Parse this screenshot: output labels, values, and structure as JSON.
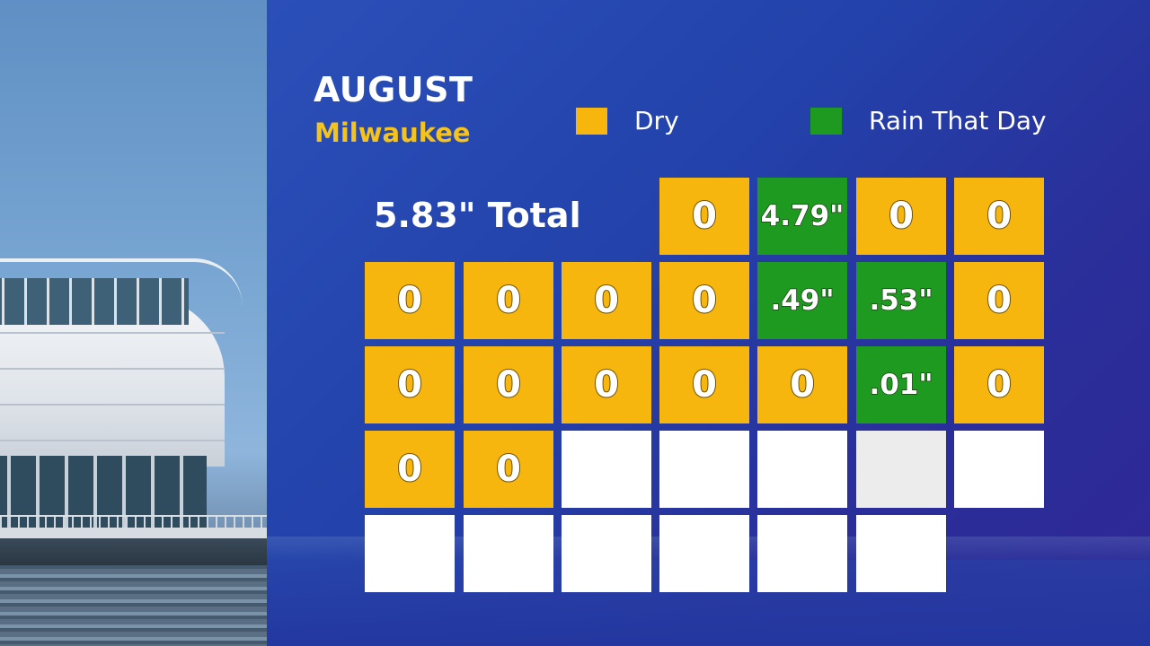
{
  "header": {
    "title": "AUGUST",
    "subtitle": "Milwaukee",
    "total": "5.83\" Total"
  },
  "legend": [
    {
      "label": "Dry",
      "color": "#f7b60d"
    },
    {
      "label": "Rain That Day",
      "color": "#1f9a20"
    }
  ],
  "colors": {
    "dry": "#f7b60d",
    "rain": "#1f9a20",
    "empty": "#ffffff",
    "background": "#2342ab"
  },
  "calendar": {
    "weeks": [
      [
        null,
        null,
        null,
        {
          "value": "0",
          "status": "dry"
        },
        {
          "value": "4.79\"",
          "status": "rain"
        },
        {
          "value": "0",
          "status": "dry"
        },
        {
          "value": "0",
          "status": "dry"
        }
      ],
      [
        {
          "value": "0",
          "status": "dry"
        },
        {
          "value": "0",
          "status": "dry"
        },
        {
          "value": "0",
          "status": "dry"
        },
        {
          "value": "0",
          "status": "dry"
        },
        {
          "value": ".49\"",
          "status": "rain"
        },
        {
          "value": ".53\"",
          "status": "rain"
        },
        {
          "value": "0",
          "status": "dry"
        }
      ],
      [
        {
          "value": "0",
          "status": "dry"
        },
        {
          "value": "0",
          "status": "dry"
        },
        {
          "value": "0",
          "status": "dry"
        },
        {
          "value": "0",
          "status": "dry"
        },
        {
          "value": "0",
          "status": "dry"
        },
        {
          "value": ".01\"",
          "status": "rain"
        },
        {
          "value": "0",
          "status": "dry"
        }
      ],
      [
        {
          "value": "0",
          "status": "dry"
        },
        {
          "value": "0",
          "status": "dry"
        },
        {
          "value": "",
          "status": "empty"
        },
        {
          "value": "",
          "status": "empty"
        },
        {
          "value": "",
          "status": "empty"
        },
        {
          "value": "",
          "status": "empty-grey"
        },
        {
          "value": "",
          "status": "empty"
        }
      ],
      [
        {
          "value": "",
          "status": "empty"
        },
        {
          "value": "",
          "status": "empty"
        },
        {
          "value": "",
          "status": "empty"
        },
        {
          "value": "",
          "status": "empty"
        },
        {
          "value": "",
          "status": "empty"
        },
        {
          "value": "",
          "status": "empty"
        },
        null
      ]
    ]
  }
}
